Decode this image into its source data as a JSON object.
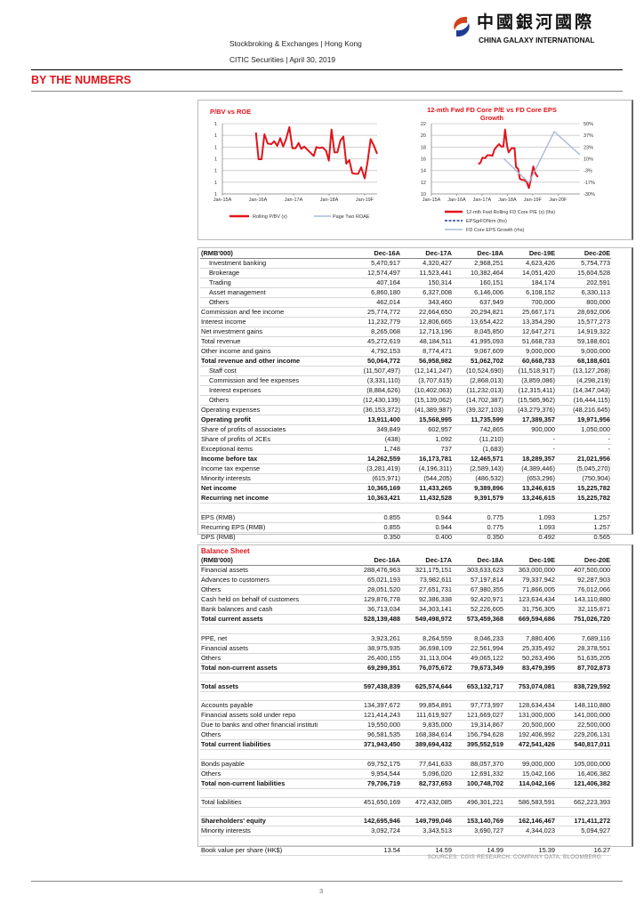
{
  "header": {
    "line1": "Stockbroking & Exchanges | Hong Kong",
    "line2": "CITIC Securities | April 30, 2019",
    "logo_cn": "中國銀河國際",
    "logo_en": "CHINA GALAXY INTERNATIONAL"
  },
  "section_title": "BY THE NUMBERS",
  "colors": {
    "accent": "#e1141b",
    "series_red": "#e1141b",
    "series_blue": "#a9b8dc",
    "series_navy": "#1f3a93"
  },
  "chart_data": [
    {
      "type": "line",
      "title": "P/BV vs ROE",
      "xlabel": "",
      "ylabel": "",
      "x_unit": "months since Jan-15",
      "xticks": [
        {
          "x": 0,
          "label": "Jan-15A"
        },
        {
          "x": 12,
          "label": "Jan-16A"
        },
        {
          "x": 24,
          "label": "Jan-17A"
        },
        {
          "x": 36,
          "label": "Jan-18A"
        },
        {
          "x": 48,
          "label": "Jan-19F"
        }
      ],
      "xlim": [
        0,
        52.2
      ],
      "ylim": [
        0,
        6
      ],
      "yticks": [
        {
          "y": 0,
          "label": "1"
        },
        {
          "y": 1,
          "label": "1"
        },
        {
          "y": 2,
          "label": "1"
        },
        {
          "y": 3,
          "label": "1"
        },
        {
          "y": 4,
          "label": "1"
        },
        {
          "y": 5,
          "label": "1"
        },
        {
          "y": 6,
          "label": "1"
        }
      ],
      "legend": "bottom",
      "series": [
        {
          "name": "Rolling P/BV (x)",
          "color": "#e1141b",
          "x": [
            11.3,
            12.2,
            13.2,
            14.2,
            15.3,
            16.5,
            17.5,
            18.5,
            19.5,
            20.5,
            21.5,
            22.6,
            23.6,
            24.7,
            25.7,
            26.6,
            27.6,
            28.6,
            29.6,
            30.8,
            31.7,
            32.8,
            33.8,
            35,
            35.9,
            36.8,
            37.8,
            38.8,
            39.8,
            40.8,
            41.8,
            42.8,
            43.8,
            44.8,
            45.8,
            46.8,
            48,
            49,
            50,
            51,
            52.2
          ],
          "y": [
            5.24,
            2.96,
            2.96,
            5.1,
            4.3,
            4.25,
            4.5,
            4.1,
            4.76,
            4.05,
            4.7,
            5.7,
            3.9,
            3.9,
            4.35,
            3.85,
            4.05,
            3.8,
            3.55,
            3.24,
            4.0,
            3.92,
            3.97,
            3.67,
            2.84,
            5.5,
            3.55,
            3.55,
            4.56,
            4.89,
            2.58,
            2.89,
            1.77,
            1.72,
            1.72,
            2.28,
            1.32,
            2.78,
            4.68,
            4.18,
            3.42
          ]
        },
        {
          "name": "Page Two ROAE",
          "color": "#a9b8dc",
          "x": [],
          "y": []
        }
      ]
    },
    {
      "type": "line",
      "title": "12-mth Fwd FD Core P/E vs FD Core EPS Growth",
      "title_line1": "12-mth Fwd FD Core P/E vs FD Core EPS",
      "title_line2": "Growth",
      "x_unit": "months since Jan-15",
      "xticks": [
        {
          "x": 0,
          "label": "Jan-15A"
        },
        {
          "x": 12,
          "label": "Jan-16A"
        },
        {
          "x": 24,
          "label": "Jan-17A"
        },
        {
          "x": 36,
          "label": "Jan-18A"
        },
        {
          "x": 48,
          "label": "Jan-19F"
        },
        {
          "x": 60,
          "label": "Jan-20F"
        }
      ],
      "xlim": [
        0,
        70.4
      ],
      "ylim": [
        10,
        22
      ],
      "y2lim": [
        -30,
        50
      ],
      "yticks": [
        {
          "y": 10,
          "label": "10"
        },
        {
          "y": 12,
          "label": "12"
        },
        {
          "y": 14,
          "label": "14"
        },
        {
          "y": 16,
          "label": "16"
        },
        {
          "y": 18,
          "label": "18"
        },
        {
          "y": 20,
          "label": "20"
        },
        {
          "y": 22,
          "label": "22"
        }
      ],
      "y2ticks": [
        {
          "y": -30,
          "label": "-30%"
        },
        {
          "y": -16.7,
          "label": "-17%"
        },
        {
          "y": -3.3,
          "label": "-3%"
        },
        {
          "y": 10,
          "label": "10%"
        },
        {
          "y": 23.3,
          "label": "23%"
        },
        {
          "y": 36.7,
          "label": "37%"
        },
        {
          "y": 50,
          "label": "50%"
        }
      ],
      "legend": "bottom",
      "series": [
        {
          "name": "12-mth Fwd Rolling FD Core P/E (x) (lhs)",
          "axis": "lhs",
          "color": "#e1141b",
          "x": [
            22.2,
            23.2,
            24.2,
            25.4,
            26.5,
            27.9,
            28.9,
            29.9,
            31,
            32.1,
            33.1,
            34.1,
            34.9,
            35.9,
            36.6,
            38,
            39.4,
            40.1,
            41.1,
            41.9,
            42.8,
            43.8,
            45.1,
            46.2,
            47.3,
            48.3,
            49.3,
            50.4
          ],
          "y": [
            15.1,
            15.3,
            16.2,
            16.1,
            16.6,
            16.6,
            16.5,
            17.6,
            18.1,
            18.5,
            18.1,
            18.1,
            21.0,
            18.1,
            17.1,
            17.8,
            17.8,
            14.6,
            14.3,
            12.6,
            12.4,
            12.4,
            12.1,
            11.0,
            12.8,
            14.7,
            13.5,
            12.9
          ]
        },
        {
          "name": "EPSgrFDNrm (lhs)",
          "axis": "lhs",
          "color": "#1f3a93",
          "dashed": true,
          "x": [],
          "y": []
        },
        {
          "name": "FD Core EPS Growth (rhs)",
          "axis": "rhs",
          "color": "#a9b8dc",
          "x": [
            34.2,
            46.2,
            58.2,
            70.4
          ],
          "y": [
            10.5,
            -17.2,
            41.0,
            14.6
          ]
        }
      ]
    }
  ],
  "income": {
    "columns": [
      "(RMB'000)",
      "Dec-16A",
      "Dec-17A",
      "Dec-18A",
      "Dec-19E",
      "Dec-20E"
    ],
    "rows": [
      {
        "s": "indent",
        "c": [
          "Investment banking",
          "5,470,917",
          "4,320,427",
          "2,968,251",
          "4,623,426",
          "5,754,773"
        ]
      },
      {
        "s": "indent",
        "c": [
          "Brokerage",
          "12,574,497",
          "11,523,441",
          "10,382,464",
          "14,051,420",
          "15,604,528"
        ]
      },
      {
        "s": "indent",
        "c": [
          "Trading",
          "407,164",
          "150,314",
          "160,151",
          "184,174",
          "202,591"
        ]
      },
      {
        "s": "indent",
        "c": [
          "Asset management",
          "6,860,180",
          "6,327,008",
          "6,146,006",
          "6,108,152",
          "6,330,113"
        ]
      },
      {
        "s": "indent",
        "c": [
          "Others",
          "462,014",
          "343,460",
          "637,949",
          "700,000",
          "800,000"
        ]
      },
      {
        "s": "",
        "c": [
          "Commission and fee income",
          "25,774,772",
          "22,664,650",
          "20,294,821",
          "25,667,171",
          "28,692,006"
        ]
      },
      {
        "s": "",
        "c": [
          "Interest income",
          "11,232,779",
          "12,806,665",
          "13,654,422",
          "13,354,290",
          "15,577,273"
        ]
      },
      {
        "s": "",
        "c": [
          "Net investment gains",
          "8,265,068",
          "12,713,196",
          "8,045,850",
          "12,647,271",
          "14,919,322"
        ]
      },
      {
        "s": "",
        "c": [
          "Total revenue",
          "45,272,619",
          "48,184,511",
          "41,995,093",
          "51,668,733",
          "59,188,601"
        ]
      },
      {
        "s": "",
        "c": [
          "Other income and gains",
          "4,792,153",
          "8,774,471",
          "9,067,609",
          "9,000,000",
          "9,000,000"
        ]
      },
      {
        "s": "bold",
        "c": [
          "Total revenue and other income",
          "50,064,772",
          "56,958,982",
          "51,062,702",
          "60,668,733",
          "68,188,601"
        ]
      },
      {
        "s": "indent",
        "c": [
          "Staff cost",
          "(11,507,497)",
          "(12,141,247)",
          "(10,524,690)",
          "(11,518,917)",
          "(13,127,268)"
        ]
      },
      {
        "s": "indent",
        "c": [
          "Commission and fee expenses",
          "(3,331,110)",
          "(3,707,615)",
          "(2,868,013)",
          "(3,859,086)",
          "(4,298,219)"
        ]
      },
      {
        "s": "indent",
        "c": [
          "Interest expenses",
          "(8,884,626)",
          "(10,402,063)",
          "(11,232,013)",
          "(12,315,411)",
          "(14,347,043)"
        ]
      },
      {
        "s": "indent",
        "c": [
          "Others",
          "(12,430,139)",
          "(15,139,062)",
          "(14,702,387)",
          "(15,585,962)",
          "(16,444,115)"
        ]
      },
      {
        "s": "",
        "c": [
          "Operating expenses",
          "(36,153,372)",
          "(41,389,987)",
          "(39,327,103)",
          "(43,279,376)",
          "(48,216,645)"
        ]
      },
      {
        "s": "bold",
        "c": [
          "Operating profit",
          "13,911,400",
          "15,568,995",
          "11,735,599",
          "17,389,357",
          "19,971,956"
        ]
      },
      {
        "s": "",
        "c": [
          "Share of profits of associates",
          "349,849",
          "602,957",
          "742,865",
          "900,000",
          "1,050,000"
        ]
      },
      {
        "s": "",
        "c": [
          "Share of profits of JCEs",
          "(438)",
          "1,092",
          "(11,210)",
          "-",
          "-"
        ]
      },
      {
        "s": "",
        "c": [
          "Exceptional items",
          "1,748",
          "737",
          "(1,683)",
          "-",
          "-"
        ]
      },
      {
        "s": "bold",
        "c": [
          "Income before tax",
          "14,262,559",
          "16,173,781",
          "12,465,571",
          "18,289,357",
          "21,021,956"
        ]
      },
      {
        "s": "",
        "c": [
          "Income tax expense",
          "(3,281,419)",
          "(4,196,311)",
          "(2,589,143)",
          "(4,389,446)",
          "(5,045,270)"
        ]
      },
      {
        "s": "",
        "c": [
          "Minority interests",
          "(615,971)",
          "(544,205)",
          "(486,532)",
          "(653,296)",
          "(750,904)"
        ]
      },
      {
        "s": "bold",
        "c": [
          "Net income",
          "10,365,169",
          "11,433,265",
          "9,389,896",
          "13,246,615",
          "15,225,782"
        ]
      },
      {
        "s": "bold",
        "c": [
          "Recurring net income",
          "10,363,421",
          "11,432,528",
          "9,391,579",
          "13,246,615",
          "15,225,782"
        ]
      },
      {
        "s": "blank",
        "c": [
          "",
          "",
          "",
          "",
          "",
          ""
        ]
      },
      {
        "s": "",
        "c": [
          "EPS (RMB)",
          "0.855",
          "0.944",
          "0.775",
          "1.093",
          "1.257"
        ]
      },
      {
        "s": "",
        "c": [
          "Recurring EPS (RMB)",
          "0.855",
          "0.944",
          "0.775",
          "1.093",
          "1.257"
        ]
      },
      {
        "s": "",
        "c": [
          "DPS (RMB)",
          "0.350",
          "0.400",
          "0.350",
          "0.492",
          "0.565"
        ]
      }
    ]
  },
  "balance": {
    "title": "Balance Sheet",
    "columns": [
      "(RMB'000)",
      "Dec-16A",
      "Dec-17A",
      "Dec-18A",
      "Dec-19E",
      "Dec-20E"
    ],
    "rows": [
      {
        "s": "",
        "c": [
          "Financial assets",
          "288,476,963",
          "321,175,151",
          "303,633,623",
          "363,000,000",
          "407,500,000"
        ]
      },
      {
        "s": "",
        "c": [
          "Advances to customers",
          "65,021,193",
          "73,982,611",
          "57,197,814",
          "79,337,942",
          "92,287,903"
        ]
      },
      {
        "s": "",
        "c": [
          "Others",
          "28,051,520",
          "27,651,731",
          "67,980,355",
          "71,866,005",
          "76,012,066"
        ]
      },
      {
        "s": "",
        "c": [
          "Cash held on behalf of customers",
          "129,876,778",
          "92,386,338",
          "92,420,971",
          "123,634,434",
          "143,110,880"
        ]
      },
      {
        "s": "",
        "c": [
          "Bank balances and cash",
          "36,713,034",
          "34,303,141",
          "52,226,605",
          "31,756,305",
          "32,115,871"
        ]
      },
      {
        "s": "bold",
        "c": [
          "Total current assets",
          "528,139,488",
          "549,498,972",
          "573,459,368",
          "669,594,686",
          "751,026,720"
        ]
      },
      {
        "s": "blank",
        "c": [
          "",
          "",
          "",
          "",
          "",
          ""
        ]
      },
      {
        "s": "",
        "c": [
          "PPE, net",
          "3,923,261",
          "8,264,559",
          "8,046,233",
          "7,880,406",
          "7,689,116"
        ]
      },
      {
        "s": "",
        "c": [
          "Financial assets",
          "38,975,935",
          "36,698,109",
          "22,561,994",
          "25,335,492",
          "28,378,551"
        ]
      },
      {
        "s": "",
        "c": [
          "Others",
          "26,400,155",
          "31,113,004",
          "49,065,122",
          "50,263,496",
          "51,635,205"
        ]
      },
      {
        "s": "bold",
        "c": [
          "Total non-current assets",
          "69,299,351",
          "76,075,672",
          "79,673,349",
          "83,479,395",
          "87,702,873"
        ]
      },
      {
        "s": "blank",
        "c": [
          "",
          "",
          "",
          "",
          "",
          ""
        ]
      },
      {
        "s": "bold",
        "c": [
          "Total assets",
          "597,438,839",
          "625,574,644",
          "653,132,717",
          "753,074,081",
          "838,729,592"
        ]
      },
      {
        "s": "blank",
        "c": [
          "",
          "",
          "",
          "",
          "",
          ""
        ]
      },
      {
        "s": "",
        "c": [
          "Accounts payable",
          "134,397,672",
          "99,854,891",
          "97,773,997",
          "128,634,434",
          "148,110,880"
        ]
      },
      {
        "s": "",
        "c": [
          "Financial assets sold under repo",
          "121,414,243",
          "111,619,927",
          "121,669,027",
          "131,000,000",
          "141,000,000"
        ]
      },
      {
        "s": "",
        "c": [
          "Due to banks and other financial instituti",
          "19,550,000",
          "9,835,000",
          "19,314,867",
          "20,500,000",
          "22,500,000"
        ]
      },
      {
        "s": "",
        "c": [
          "Others",
          "96,581,535",
          "168,384,614",
          "156,794,628",
          "192,406,992",
          "229,206,131"
        ]
      },
      {
        "s": "bold",
        "c": [
          "Total current liabilities",
          "371,943,450",
          "389,694,432",
          "395,552,519",
          "472,541,426",
          "540,817,011"
        ]
      },
      {
        "s": "blank",
        "c": [
          "",
          "",
          "",
          "",
          "",
          ""
        ]
      },
      {
        "s": "",
        "c": [
          "Bonds payable",
          "69,752,175",
          "77,641,633",
          "88,057,370",
          "99,000,000",
          "105,000,000"
        ]
      },
      {
        "s": "",
        "c": [
          "Others",
          "9,954,544",
          "5,096,020",
          "12,691,332",
          "15,042,166",
          "16,406,382"
        ]
      },
      {
        "s": "bold",
        "c": [
          "Total non-current liabilities",
          "79,706,719",
          "82,737,653",
          "100,748,702",
          "114,042,166",
          "121,406,382"
        ]
      },
      {
        "s": "blank",
        "c": [
          "",
          "",
          "",
          "",
          "",
          ""
        ]
      },
      {
        "s": "",
        "c": [
          "Total liabilities",
          "451,650,169",
          "472,432,085",
          "496,301,221",
          "586,583,591",
          "662,223,393"
        ]
      },
      {
        "s": "blank",
        "c": [
          "",
          "",
          "",
          "",
          "",
          ""
        ]
      },
      {
        "s": "bold",
        "c": [
          "Shareholders' equity",
          "142,695,946",
          "149,799,046",
          "153,140,769",
          "162,146,467",
          "171,411,272"
        ]
      },
      {
        "s": "",
        "c": [
          "Minority interests",
          "3,092,724",
          "3,343,513",
          "3,690,727",
          "4,344,023",
          "5,094,927"
        ]
      },
      {
        "s": "blank",
        "c": [
          "",
          "",
          "",
          "",
          "",
          ""
        ]
      },
      {
        "s": "",
        "c": [
          "Book value per share (HK$)",
          "13.54",
          "14.59",
          "14.99",
          "15.39",
          "16.27"
        ]
      }
    ]
  },
  "source": "SOURCES: CGIS RESEARCH, COMPANY DATA, BLOOMBERG",
  "page_number": "3"
}
